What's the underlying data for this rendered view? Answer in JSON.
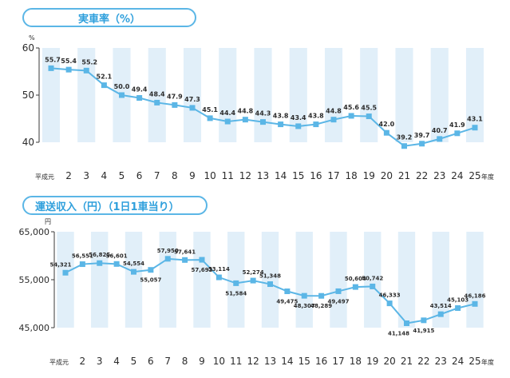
{
  "chart_data": [
    {
      "type": "line",
      "title": "実車率（%）",
      "ylabel": "%",
      "ylim": [
        40,
        60
      ],
      "yticks": [
        "60",
        "50",
        "40"
      ],
      "categories": [
        "平成元",
        "2",
        "3",
        "4",
        "5",
        "6",
        "7",
        "8",
        "9",
        "10",
        "11",
        "12",
        "13",
        "14",
        "15",
        "16",
        "17",
        "18",
        "19",
        "20",
        "21",
        "22",
        "23",
        "24",
        "25"
      ],
      "x_suffix": "年度",
      "values": [
        55.7,
        55.4,
        55.2,
        52.1,
        50.0,
        49.4,
        48.4,
        47.9,
        47.3,
        45.1,
        44.4,
        44.8,
        44.3,
        43.8,
        43.4,
        43.8,
        44.8,
        45.6,
        45.5,
        42.0,
        39.2,
        39.7,
        40.7,
        41.9,
        43.1
      ],
      "value_labels": [
        "55.7",
        "55.4",
        "55.2",
        "52.1",
        "50.0",
        "49.4",
        "48.4",
        "47.9",
        "47.3",
        "45.1",
        "44.4",
        "44.8",
        "44.3",
        "43.8",
        "43.4",
        "43.8",
        "44.8",
        "45.6",
        "45.5",
        "42.0",
        "39.2",
        "39.7",
        "40.7",
        "41.9",
        "43.1"
      ],
      "grid": false,
      "colors": {
        "line": "#5bb6e6",
        "stripe": "#e1eff9",
        "text": "#2b2b2b",
        "title": "#2e9fdc"
      }
    },
    {
      "type": "line",
      "title": "運送収入（円）（1日1車当り）",
      "ylabel": "円",
      "ylim": [
        40000,
        65000
      ],
      "yticks": [
        "65,000",
        "55,000",
        "45,000"
      ],
      "categories": [
        "平成元",
        "2",
        "3",
        "4",
        "5",
        "6",
        "7",
        "8",
        "9",
        "10",
        "11",
        "12",
        "13",
        "14",
        "15",
        "16",
        "17",
        "18",
        "19",
        "20",
        "21",
        "22",
        "23",
        "24",
        "25"
      ],
      "x_suffix": "年度",
      "values": [
        54321,
        56551,
        56825,
        56601,
        54554,
        55057,
        57950,
        57641,
        57693,
        53114,
        51584,
        52274,
        51348,
        49475,
        48307,
        48289,
        49497,
        50604,
        50742,
        46333,
        41148,
        41915,
        43514,
        45103,
        46186
      ],
      "value_labels": [
        "54,321",
        "56,551",
        "56,825",
        "56,601",
        "54,554",
        "55,057",
        "57,950",
        "57,641",
        "57,693",
        "53,114",
        "51,584",
        "52,274",
        "51,348",
        "49,475",
        "48,307",
        "48,289",
        "49,497",
        "50,604",
        "50,742",
        "46,333",
        "41,148",
        "41,915",
        "43,514",
        "45,103",
        "46,186"
      ],
      "grid": false,
      "colors": {
        "line": "#5bb6e6",
        "stripe": "#e1eff9",
        "text": "#2b2b2b",
        "title": "#2e9fdc"
      }
    }
  ]
}
